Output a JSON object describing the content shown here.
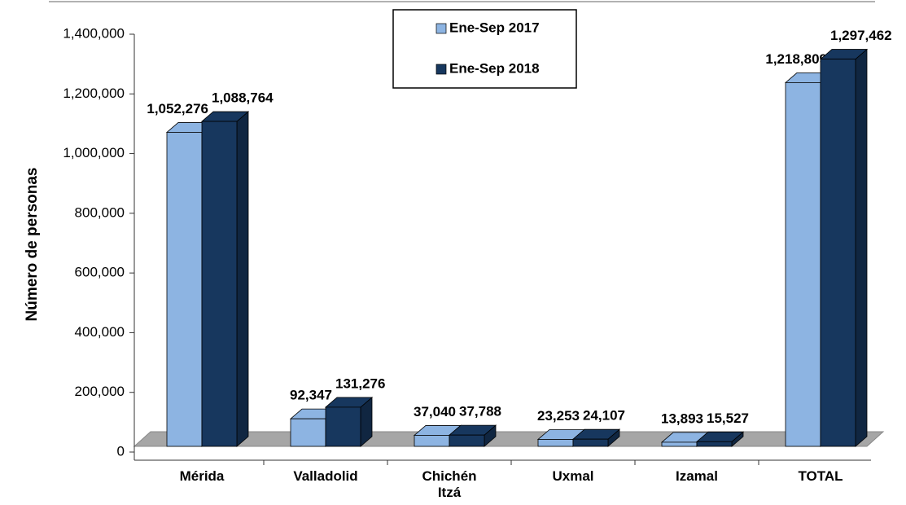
{
  "chart_data": {
    "type": "bar3d",
    "y_label": "Número de personas",
    "categories": [
      "Mérida",
      "Valladolid",
      "Chichén Itzá",
      "Uxmal",
      "Izamal",
      "TOTAL"
    ],
    "series": [
      {
        "name": "Ene-Sep 2017",
        "color": "#8db4e2",
        "values": [
          1052276,
          92347,
          37040,
          23253,
          13893,
          1218809
        ],
        "value_labels": [
          "1,052,276",
          "92,347",
          "37,040",
          "23,253",
          "13,893",
          "1,218,809"
        ]
      },
      {
        "name": "Ene-Sep 2018",
        "color": "#17375e",
        "values": [
          1088764,
          131276,
          37788,
          24107,
          15527,
          1297462
        ],
        "value_labels": [
          "1,088,764",
          "131,276",
          "37,788",
          "24,107",
          "15,527",
          "1,297,462"
        ]
      }
    ],
    "ylim": [
      0,
      1400000
    ],
    "yticks": [
      0,
      {
        "value": 200000,
        "label": "200,000"
      },
      {
        "value": 400000,
        "label": "400,000"
      },
      {
        "value": 600000,
        "label": "600,000"
      },
      {
        "value": 800000,
        "label": "800,000"
      },
      {
        "value": 1000000,
        "label": "1,000,000"
      },
      {
        "value": 1200000,
        "label": "1,200,000"
      },
      {
        "value": 1400000,
        "label": "1,400,000"
      }
    ],
    "legend": "top"
  }
}
